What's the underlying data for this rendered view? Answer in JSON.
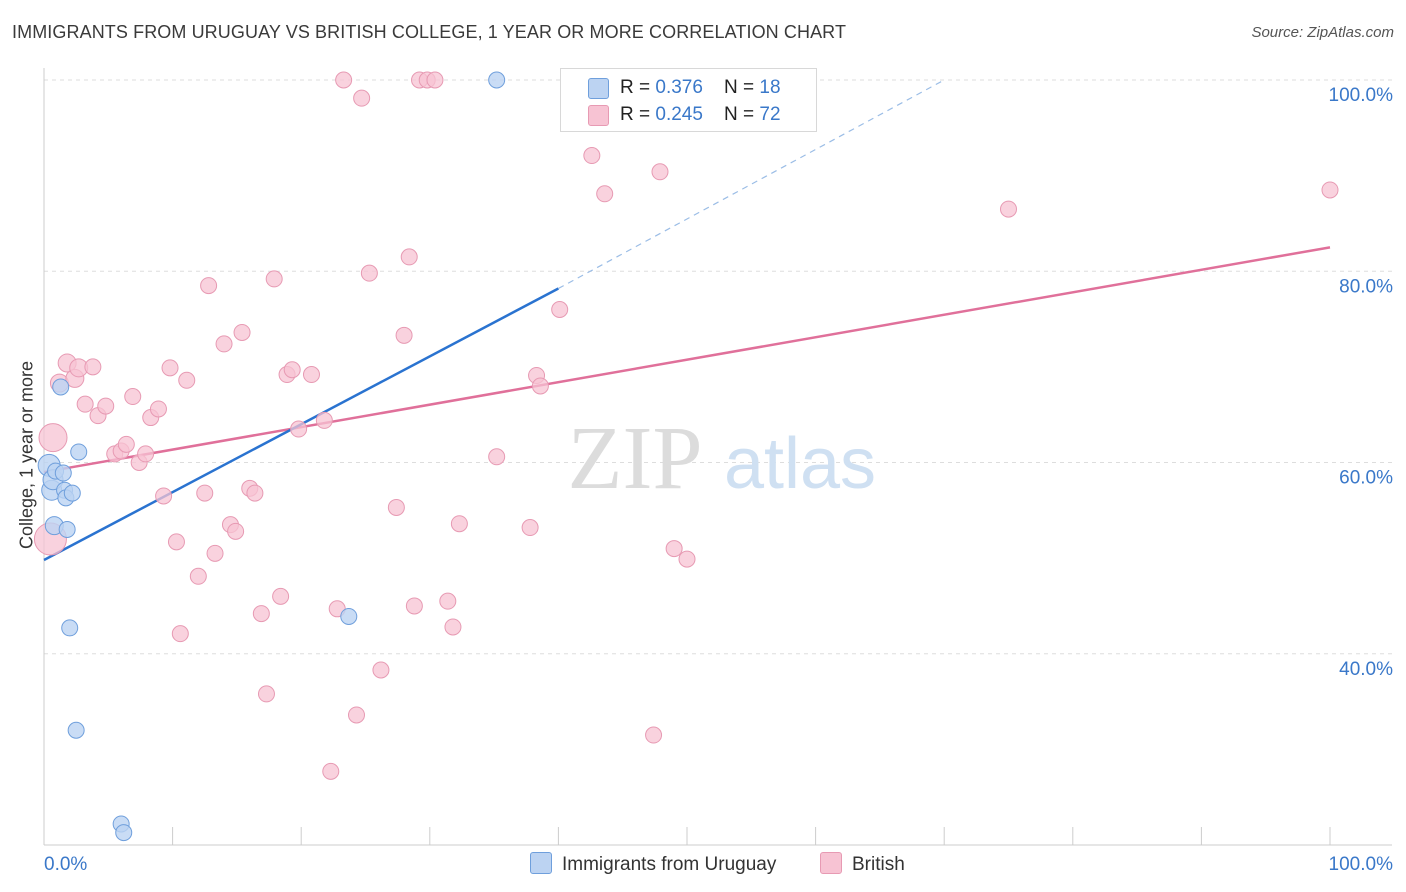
{
  "title": "IMMIGRANTS FROM URUGUAY VS BRITISH COLLEGE, 1 YEAR OR MORE CORRELATION CHART",
  "source": "Source: ZipAtlas.com",
  "watermark": {
    "zip": "ZIP",
    "atlas": "atlas"
  },
  "colors": {
    "blue_fill": "#bcd3f2",
    "blue_stroke": "#6f9fdc",
    "blue_line": "#2a73d0",
    "pink_fill": "#f7c3d3",
    "pink_stroke": "#e79ab3",
    "pink_line": "#e0709a",
    "axis_text": "#3a78c9"
  },
  "legend_top": {
    "rows": [
      {
        "r_label": "R = ",
        "r_value": "0.376",
        "n_label": "N = ",
        "n_value": "18"
      },
      {
        "r_label": "R = ",
        "r_value": "0.245",
        "n_label": "N = ",
        "n_value": "72"
      }
    ]
  },
  "legend_bottom": {
    "series1": "Immigrants from Uruguay",
    "series2": "British"
  },
  "chart_data": {
    "type": "scatter",
    "title": "IMMIGRANTS FROM URUGUAY VS BRITISH COLLEGE, 1 YEAR OR MORE CORRELATION CHART",
    "xlabel": "",
    "ylabel": "College, 1 year or more",
    "xlim": [
      0,
      100
    ],
    "ylim": [
      20,
      102
    ],
    "x_tick_labels": [
      "0.0%",
      "100.0%"
    ],
    "y_ticks": [
      40,
      60,
      80,
      100
    ],
    "y_tick_labels": [
      "40.0%",
      "60.0%",
      "80.0%",
      "100.0%"
    ],
    "grid": true,
    "series": [
      {
        "name": "Immigrants from Uruguay",
        "r": 0.376,
        "n": 18,
        "trend": {
          "x": [
            0,
            40
          ],
          "y": [
            49.8,
            78.2
          ]
        },
        "trend_dashed": {
          "x": [
            40,
            70
          ],
          "y": [
            78.2,
            100
          ]
        },
        "points": [
          {
            "x": 0.4,
            "y": 59.7,
            "s": 11
          },
          {
            "x": 0.6,
            "y": 57.1,
            "s": 10
          },
          {
            "x": 0.7,
            "y": 58.2,
            "s": 10
          },
          {
            "x": 0.8,
            "y": 53.4,
            "s": 9
          },
          {
            "x": 0.9,
            "y": 59.1,
            "s": 8
          },
          {
            "x": 1.3,
            "y": 67.9,
            "s": 8
          },
          {
            "x": 1.5,
            "y": 58.9,
            "s": 8
          },
          {
            "x": 1.6,
            "y": 57.1,
            "s": 8
          },
          {
            "x": 1.7,
            "y": 56.3,
            "s": 8
          },
          {
            "x": 1.8,
            "y": 53.0,
            "s": 8
          },
          {
            "x": 2.0,
            "y": 42.7,
            "s": 8
          },
          {
            "x": 2.2,
            "y": 56.8,
            "s": 8
          },
          {
            "x": 2.5,
            "y": 32.0,
            "s": 8
          },
          {
            "x": 2.7,
            "y": 61.1,
            "s": 8
          },
          {
            "x": 6.0,
            "y": 22.2,
            "s": 8
          },
          {
            "x": 6.2,
            "y": 21.3,
            "s": 8
          },
          {
            "x": 23.7,
            "y": 43.9,
            "s": 8
          },
          {
            "x": 35.2,
            "y": 100.0,
            "s": 8
          }
        ]
      },
      {
        "name": "British",
        "r": 0.245,
        "n": 72,
        "trend": {
          "x": [
            0,
            100
          ],
          "y": [
            59.0,
            82.5
          ]
        },
        "points": [
          {
            "x": 0.5,
            "y": 52.0,
            "s": 16
          },
          {
            "x": 0.7,
            "y": 62.6,
            "s": 14
          },
          {
            "x": 1.2,
            "y": 68.3,
            "s": 9
          },
          {
            "x": 1.8,
            "y": 70.4,
            "s": 9
          },
          {
            "x": 2.4,
            "y": 68.8,
            "s": 9
          },
          {
            "x": 2.7,
            "y": 69.9,
            "s": 9
          },
          {
            "x": 3.2,
            "y": 66.1,
            "s": 8
          },
          {
            "x": 3.8,
            "y": 70.0,
            "s": 8
          },
          {
            "x": 4.2,
            "y": 64.9,
            "s": 8
          },
          {
            "x": 4.8,
            "y": 65.9,
            "s": 8
          },
          {
            "x": 5.5,
            "y": 60.9,
            "s": 8
          },
          {
            "x": 6.0,
            "y": 61.2,
            "s": 8
          },
          {
            "x": 6.4,
            "y": 61.9,
            "s": 8
          },
          {
            "x": 6.9,
            "y": 66.9,
            "s": 8
          },
          {
            "x": 7.4,
            "y": 60.0,
            "s": 8
          },
          {
            "x": 7.9,
            "y": 60.9,
            "s": 8
          },
          {
            "x": 8.3,
            "y": 64.7,
            "s": 8
          },
          {
            "x": 8.9,
            "y": 65.6,
            "s": 8
          },
          {
            "x": 9.3,
            "y": 56.5,
            "s": 8
          },
          {
            "x": 9.8,
            "y": 69.9,
            "s": 8
          },
          {
            "x": 10.3,
            "y": 51.7,
            "s": 8
          },
          {
            "x": 10.6,
            "y": 42.1,
            "s": 8
          },
          {
            "x": 11.1,
            "y": 68.6,
            "s": 8
          },
          {
            "x": 12.0,
            "y": 48.1,
            "s": 8
          },
          {
            "x": 12.5,
            "y": 56.8,
            "s": 8
          },
          {
            "x": 12.8,
            "y": 78.5,
            "s": 8
          },
          {
            "x": 13.3,
            "y": 50.5,
            "s": 8
          },
          {
            "x": 14.0,
            "y": 72.4,
            "s": 8
          },
          {
            "x": 14.5,
            "y": 53.5,
            "s": 8
          },
          {
            "x": 14.9,
            "y": 52.8,
            "s": 8
          },
          {
            "x": 15.4,
            "y": 73.6,
            "s": 8
          },
          {
            "x": 16.0,
            "y": 57.3,
            "s": 8
          },
          {
            "x": 16.4,
            "y": 56.8,
            "s": 8
          },
          {
            "x": 16.9,
            "y": 44.2,
            "s": 8
          },
          {
            "x": 17.3,
            "y": 35.8,
            "s": 8
          },
          {
            "x": 17.9,
            "y": 79.2,
            "s": 8
          },
          {
            "x": 18.4,
            "y": 46.0,
            "s": 8
          },
          {
            "x": 18.9,
            "y": 69.2,
            "s": 8
          },
          {
            "x": 19.3,
            "y": 69.7,
            "s": 8
          },
          {
            "x": 19.8,
            "y": 63.5,
            "s": 8
          },
          {
            "x": 20.8,
            "y": 69.2,
            "s": 8
          },
          {
            "x": 21.8,
            "y": 64.4,
            "s": 8
          },
          {
            "x": 22.3,
            "y": 27.7,
            "s": 8
          },
          {
            "x": 22.8,
            "y": 44.7,
            "s": 8
          },
          {
            "x": 23.3,
            "y": 100.0,
            "s": 8
          },
          {
            "x": 24.3,
            "y": 33.6,
            "s": 8
          },
          {
            "x": 24.7,
            "y": 98.1,
            "s": 8
          },
          {
            "x": 25.3,
            "y": 79.8,
            "s": 8
          },
          {
            "x": 26.2,
            "y": 38.3,
            "s": 8
          },
          {
            "x": 27.4,
            "y": 55.3,
            "s": 8
          },
          {
            "x": 28.0,
            "y": 73.3,
            "s": 8
          },
          {
            "x": 28.4,
            "y": 81.5,
            "s": 8
          },
          {
            "x": 28.8,
            "y": 45.0,
            "s": 8
          },
          {
            "x": 29.2,
            "y": 100.0,
            "s": 8
          },
          {
            "x": 29.8,
            "y": 100.0,
            "s": 8
          },
          {
            "x": 30.4,
            "y": 100.0,
            "s": 8
          },
          {
            "x": 31.4,
            "y": 45.5,
            "s": 8
          },
          {
            "x": 31.8,
            "y": 42.8,
            "s": 8
          },
          {
            "x": 32.3,
            "y": 53.6,
            "s": 8
          },
          {
            "x": 35.2,
            "y": 60.6,
            "s": 8
          },
          {
            "x": 37.8,
            "y": 53.2,
            "s": 8
          },
          {
            "x": 38.3,
            "y": 69.1,
            "s": 8
          },
          {
            "x": 38.6,
            "y": 68.0,
            "s": 8
          },
          {
            "x": 40.1,
            "y": 76.0,
            "s": 8
          },
          {
            "x": 42.6,
            "y": 92.1,
            "s": 8
          },
          {
            "x": 43.6,
            "y": 88.1,
            "s": 8
          },
          {
            "x": 47.4,
            "y": 31.5,
            "s": 8
          },
          {
            "x": 47.9,
            "y": 90.4,
            "s": 8
          },
          {
            "x": 49.0,
            "y": 51.0,
            "s": 8
          },
          {
            "x": 50.0,
            "y": 49.9,
            "s": 8
          },
          {
            "x": 75.0,
            "y": 86.5,
            "s": 8
          },
          {
            "x": 100.0,
            "y": 88.5,
            "s": 8
          }
        ]
      }
    ]
  }
}
